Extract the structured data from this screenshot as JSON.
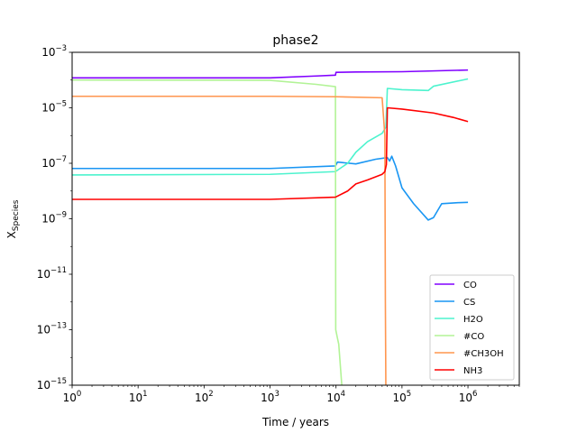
{
  "chart_data": {
    "type": "line",
    "title": "phase2",
    "xlabel": "Time / years",
    "ylabel": "X",
    "ylabel_sub": "Species",
    "x_scale": "log",
    "y_scale": "log",
    "xlim": [
      1,
      6000000
    ],
    "ylim": [
      1e-15,
      0.001
    ],
    "x_ticks": [
      {
        "value": 1,
        "base": "10",
        "exp": "0"
      },
      {
        "value": 10,
        "base": "10",
        "exp": "1"
      },
      {
        "value": 100,
        "base": "10",
        "exp": "2"
      },
      {
        "value": 1000,
        "base": "10",
        "exp": "3"
      },
      {
        "value": 10000,
        "base": "10",
        "exp": "4"
      },
      {
        "value": 100000,
        "base": "10",
        "exp": "5"
      },
      {
        "value": 1000000,
        "base": "10",
        "exp": "6"
      }
    ],
    "y_ticks": [
      {
        "value": 1e-15,
        "base": "10",
        "exp": "−15"
      },
      {
        "value": 1e-13,
        "base": "10",
        "exp": "−13"
      },
      {
        "value": 1e-11,
        "base": "10",
        "exp": "−11"
      },
      {
        "value": 1e-09,
        "base": "10",
        "exp": "−9"
      },
      {
        "value": 1e-07,
        "base": "10",
        "exp": "−7"
      },
      {
        "value": 1e-05,
        "base": "10",
        "exp": "−5"
      },
      {
        "value": 0.001,
        "base": "10",
        "exp": "−3"
      }
    ],
    "grid": false,
    "legend_position": "lower-right",
    "series": [
      {
        "name": "CO",
        "color": "#8000ff",
        "points": [
          [
            1,
            0.00012
          ],
          [
            1000,
            0.00012
          ],
          [
            5000,
            0.00014
          ],
          [
            9800,
            0.00015
          ],
          [
            10000,
            0.00019
          ],
          [
            20000,
            0.000195
          ],
          [
            100000,
            0.0002
          ],
          [
            1000000,
            0.00023
          ]
        ]
      },
      {
        "name": "CS",
        "color": "#1996f3",
        "points": [
          [
            1,
            6.5e-08
          ],
          [
            1000,
            6.5e-08
          ],
          [
            9800,
            8e-08
          ],
          [
            10500,
            1.1e-07
          ],
          [
            20000,
            9.5e-08
          ],
          [
            40000,
            1.4e-07
          ],
          [
            60000,
            1.6e-07
          ],
          [
            65000,
            1.2e-07
          ],
          [
            70000,
            1.8e-07
          ],
          [
            80000,
            8e-08
          ],
          [
            100000,
            1.3e-08
          ],
          [
            150000,
            3.5e-09
          ],
          [
            250000,
            9e-10
          ],
          [
            300000,
            1.1e-09
          ],
          [
            400000,
            3.5e-09
          ],
          [
            700000,
            3.8e-09
          ],
          [
            1000000,
            3.9e-09
          ]
        ]
      },
      {
        "name": "H2O",
        "color": "#4df3ce",
        "points": [
          [
            1,
            3.8e-08
          ],
          [
            1000,
            4e-08
          ],
          [
            9800,
            5e-08
          ],
          [
            15000,
            1e-07
          ],
          [
            20000,
            2.5e-07
          ],
          [
            30000,
            6e-07
          ],
          [
            50000,
            1.2e-06
          ],
          [
            57000,
            2e-06
          ],
          [
            60000,
            5e-05
          ],
          [
            100000,
            4.5e-05
          ],
          [
            250000,
            4.2e-05
          ],
          [
            300000,
            6e-05
          ],
          [
            1000000,
            0.00011
          ]
        ]
      },
      {
        "name": "#CO",
        "color": "#b2f396",
        "points": [
          [
            1,
            0.0001
          ],
          [
            1000,
            9.8e-05
          ],
          [
            5000,
            7e-05
          ],
          [
            9800,
            5.8e-05
          ],
          [
            9900,
            1e-13
          ],
          [
            10500,
            5e-14
          ],
          [
            11000,
            3e-14
          ],
          [
            12500,
            5e-16
          ]
        ]
      },
      {
        "name": "#CH3OH",
        "color": "#ff964f",
        "points": [
          [
            1,
            2.6e-05
          ],
          [
            1000,
            2.6e-05
          ],
          [
            10000,
            2.5e-05
          ],
          [
            50000,
            2.3e-05
          ],
          [
            55000,
            1e-06
          ],
          [
            56000,
            1e-12
          ],
          [
            57000,
            5e-16
          ]
        ]
      },
      {
        "name": "NH3",
        "color": "#ff0000",
        "points": [
          [
            1,
            5e-09
          ],
          [
            1000,
            5e-09
          ],
          [
            9800,
            6e-09
          ],
          [
            15000,
            1e-08
          ],
          [
            20000,
            1.8e-08
          ],
          [
            30000,
            2.5e-08
          ],
          [
            50000,
            4e-08
          ],
          [
            55000,
            5e-08
          ],
          [
            58000,
            9e-08
          ],
          [
            60000,
            1e-05
          ],
          [
            100000,
            9e-06
          ],
          [
            300000,
            6.5e-06
          ],
          [
            600000,
            4.5e-06
          ],
          [
            1000000,
            3.2e-06
          ]
        ]
      }
    ]
  }
}
